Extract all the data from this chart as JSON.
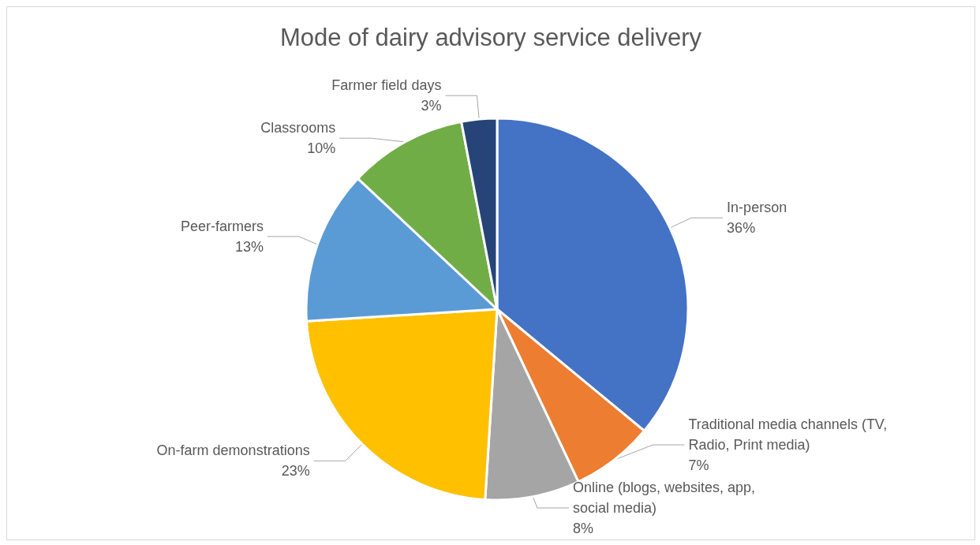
{
  "chart_data": {
    "type": "pie",
    "title": "Mode of dairy advisory service delivery",
    "categories": [
      "In-person",
      "Traditional media channels (TV, Radio, Print media)",
      "Online (blogs, websites, app, social media)",
      "On-farm demonstrations",
      "Peer-farmers",
      "Classrooms",
      "Farmer field days"
    ],
    "values": [
      36,
      7,
      8,
      23,
      13,
      10,
      3
    ],
    "value_labels": [
      "36%",
      "7%",
      "8%",
      "23%",
      "13%",
      "10%",
      "3%"
    ],
    "colors": [
      "#4472c4",
      "#ed7d31",
      "#a5a5a5",
      "#ffc000",
      "#5b9bd5",
      "#70ad47",
      "#264478"
    ],
    "legend": false
  }
}
